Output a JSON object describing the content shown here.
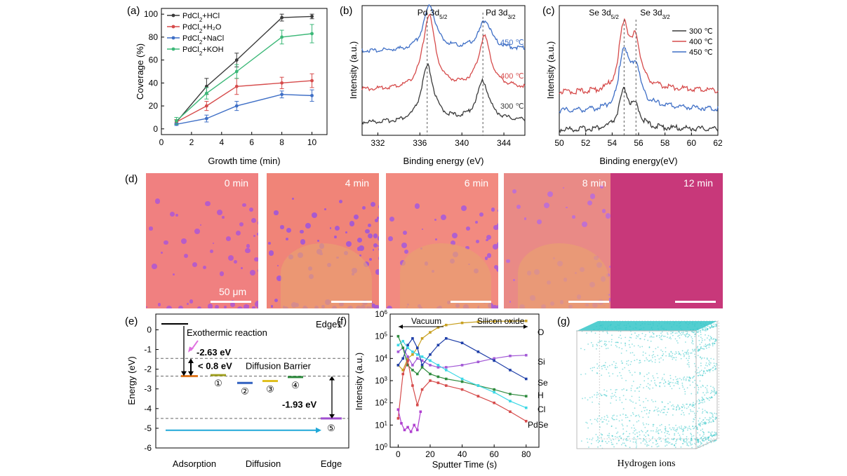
{
  "panel_labels": {
    "a": "(a)",
    "b": "(b)",
    "c": "(c)",
    "d": "(d)",
    "e": "(e)",
    "f": "(f)",
    "g": "(g)"
  },
  "chart_data": [
    {
      "id": "a",
      "type": "line",
      "xlabel": "Growth time (min)",
      "ylabel": "Coverage (%)",
      "xlim": [
        0,
        11
      ],
      "ylim": [
        -5,
        105
      ],
      "xticks": [
        0,
        2,
        4,
        6,
        8,
        10
      ],
      "yticks": [
        0,
        20,
        40,
        60,
        80,
        100
      ],
      "x": [
        1,
        3,
        5,
        8,
        10
      ],
      "series": [
        {
          "name": "PdCl2+HCl",
          "name_main": "PdCl",
          "name_sub": "2",
          "name_rest": "+HCl",
          "color": "#3a3a3a",
          "values": [
            6,
            37,
            60,
            97,
            98
          ],
          "errors": [
            2,
            7,
            6,
            3,
            2
          ]
        },
        {
          "name": "PdCl2+H2O",
          "name_main": "PdCl",
          "name_sub": "2",
          "name_rest": "+H₂O",
          "color": "#d64b4b",
          "values": [
            6,
            20,
            37,
            40,
            42
          ],
          "errors": [
            2,
            4,
            7,
            5,
            6
          ]
        },
        {
          "name": "PdCl2+NaCl",
          "name_main": "PdCl",
          "name_sub": "2",
          "name_rest": "+NaCl",
          "color": "#3f6fc6",
          "values": [
            4,
            9,
            20,
            30,
            29
          ],
          "errors": [
            1,
            3,
            4,
            3,
            5
          ]
        },
        {
          "name": "PdCl2+KOH",
          "name_main": "PdCl",
          "name_sub": "2",
          "name_rest": "+KOH",
          "color": "#3cb878",
          "values": [
            7,
            31,
            50,
            80,
            83
          ],
          "errors": [
            3,
            5,
            6,
            6,
            8
          ]
        }
      ]
    },
    {
      "id": "b",
      "type": "line",
      "xlabel": "Binding energy (eV)",
      "ylabel": "Intensity (a.u.)",
      "xlim": [
        330.5,
        346
      ],
      "xticks": [
        332,
        336,
        340,
        344
      ],
      "series": [
        {
          "name": "300 ℃",
          "color": "#3a3a3a",
          "offset": 0
        },
        {
          "name": "400 ℃",
          "color": "#d64b4b",
          "offset": 1
        },
        {
          "name": "450 ℃",
          "color": "#3f6fc6",
          "offset": 2
        }
      ],
      "peaks": [
        {
          "label_main": "Pd 3d",
          "label_sub": "5/2",
          "position": 336.7
        },
        {
          "label_main": "Pd 3d",
          "label_sub": "3/2",
          "position": 342.0
        }
      ]
    },
    {
      "id": "c",
      "type": "line",
      "xlabel": "Binding energy(eV)",
      "ylabel": "Intensity (a.u.)",
      "xlim": [
        50,
        62
      ],
      "xticks": [
        50,
        52,
        54,
        56,
        58,
        60,
        62
      ],
      "series": [
        {
          "name": "300 ℃",
          "color": "#3a3a3a",
          "offset": 0
        },
        {
          "name": "400 ℃",
          "color": "#d64b4b",
          "offset": 2
        },
        {
          "name": "450 ℃",
          "color": "#3f6fc6",
          "offset": 1
        }
      ],
      "peaks": [
        {
          "label_main": "Se 3d",
          "label_sub": "5/2",
          "position": 54.9
        },
        {
          "label_main": "Se 3d",
          "label_sub": "3/2",
          "position": 55.8
        }
      ]
    },
    {
      "id": "e",
      "type": "line",
      "title": "Edge1",
      "ylabel": "Energy (eV)",
      "ylim": [
        -6,
        0.8
      ],
      "yticks": [
        0,
        -1,
        -2,
        -3,
        -4,
        -5,
        -6
      ],
      "stages": [
        "Adsorption",
        "Diffusion",
        "Edge"
      ],
      "levels": [
        0.3,
        -2.35,
        -2.3,
        -2.7,
        -2.6,
        -2.4,
        -4.5
      ],
      "site_labels": [
        "①",
        "②",
        "③",
        "④",
        "⑤"
      ],
      "annotations": {
        "reaction": "Exothermic reaction",
        "adsorption_energy": "-2.63 eV",
        "barrier_value": "< 0.8 eV",
        "barrier_text": "Diffusion Barrier",
        "edge_energy": "-1.93 eV"
      }
    },
    {
      "id": "f",
      "type": "line",
      "xlabel": "Sputter Time (s)",
      "ylabel": "Intensity (a.u.)",
      "yscale": "log",
      "xlim": [
        -5,
        88
      ],
      "ylim_exp": [
        0,
        6
      ],
      "xticks": [
        0,
        20,
        40,
        60,
        80
      ],
      "ytick_exponents": [
        "0",
        "1",
        "2",
        "3",
        "4",
        "5",
        "6"
      ],
      "region_labels": [
        "Vacuum",
        "Silicon oxide"
      ],
      "series": [
        {
          "name": "O",
          "color": "#c8a020",
          "x": [
            0,
            3,
            6,
            9,
            12,
            15,
            20,
            25,
            30,
            40,
            50,
            60,
            70,
            80
          ],
          "values": [
            5000,
            3000,
            10000,
            15000,
            30000,
            80000,
            150000,
            250000,
            320000,
            400000,
            450000,
            470000,
            480000,
            490000
          ]
        },
        {
          "name": "Si",
          "color": "#a35ad6",
          "x": [
            0,
            3,
            6,
            9,
            12,
            15,
            20,
            25,
            30,
            40,
            50,
            60,
            70,
            80
          ],
          "values": [
            20000,
            30000,
            12000,
            5000,
            10000,
            8000,
            5000,
            4000,
            4000,
            5000,
            7000,
            10000,
            13000,
            14000
          ]
        },
        {
          "name": "Se",
          "color": "#1f3fa8",
          "x": [
            0,
            3,
            6,
            9,
            12,
            15,
            20,
            25,
            30,
            40,
            50,
            60,
            70,
            80
          ],
          "values": [
            5000,
            10000,
            40000,
            80000,
            30000,
            5000,
            15000,
            40000,
            80000,
            50000,
            20000,
            8000,
            3000,
            1200
          ]
        },
        {
          "name": "H",
          "color": "#2e8b3e",
          "x": [
            0,
            3,
            6,
            9,
            12,
            15,
            20,
            25,
            30,
            40,
            50,
            60,
            70,
            80
          ],
          "values": [
            100000,
            30000,
            5000,
            3000,
            2000,
            4000,
            2000,
            1500,
            1200,
            900,
            600,
            400,
            250,
            200
          ]
        },
        {
          "name": "Cl",
          "color": "#3cd8e6",
          "x": [
            0,
            3,
            6,
            9,
            12,
            15,
            20,
            25,
            30,
            40,
            50,
            60,
            70,
            80
          ],
          "values": [
            40000,
            60000,
            30000,
            20000,
            15000,
            12000,
            8000,
            5000,
            3000,
            1200,
            600,
            300,
            120,
            60
          ]
        },
        {
          "name": "PdSe",
          "color": "#d64b4b",
          "x": [
            0,
            3,
            6,
            9,
            12,
            15,
            20,
            25,
            30,
            40,
            50,
            60,
            70,
            80
          ],
          "values": [
            20,
            2000,
            8000,
            600,
            80,
            400,
            1000,
            800,
            600,
            400,
            200,
            100,
            40,
            15
          ]
        },
        {
          "name": "",
          "color": "#b040d0",
          "x": [
            0,
            2,
            4,
            6,
            8,
            10,
            12,
            14
          ],
          "values": [
            50,
            12,
            6,
            8,
            5,
            10,
            6,
            40
          ]
        }
      ]
    }
  ],
  "micro_panels": [
    {
      "time": "0 min",
      "scale": "50 μm",
      "color": "#f08080",
      "dot": "#b85cc8"
    },
    {
      "time": "4 min",
      "scale": "",
      "color": "#f08478",
      "dot": "#a85ad0"
    },
    {
      "time": "6 min",
      "scale": "",
      "color": "#f28a80",
      "dot": "#b060d0"
    },
    {
      "time": "8 min",
      "scale": "",
      "color": "#e98a86",
      "dot": "#c070d0"
    },
    {
      "time": "12 min",
      "scale": "",
      "color": "#c8387a",
      "dot": "#b8367a"
    }
  ],
  "panel_g": {
    "caption": "Hydrogen ions",
    "color": "#35c6c8"
  }
}
